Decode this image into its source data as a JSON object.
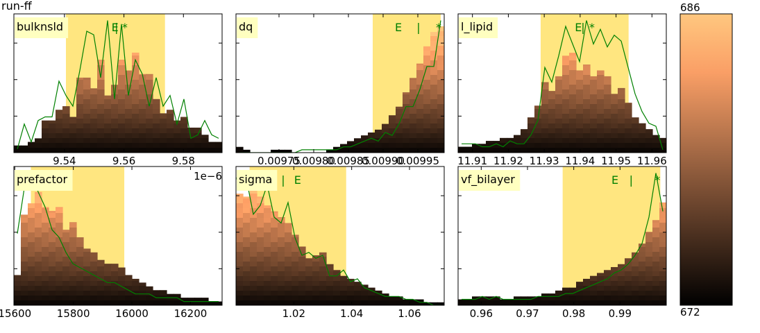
{
  "figure": {
    "title": "run-ff"
  },
  "colorbar": {
    "max_label": "686",
    "min_label": "672",
    "range": [
      672,
      686
    ],
    "colormap": "copper"
  },
  "colors": {
    "band": "#ffe680",
    "line": "#008000",
    "label_bg": "#ffffc0"
  },
  "chart_data": [
    {
      "type": "bar",
      "label": "bulknsld",
      "xlim": [
        9.523,
        9.593
      ],
      "xticks": [
        "9.54",
        "9.56",
        "9.58"
      ],
      "xtick_values": [
        9.54,
        9.56,
        9.58
      ],
      "offset_text": "",
      "band": [
        9.5405,
        9.5738
      ],
      "markers": [
        {
          "text": "E",
          "x": 9.557
        },
        {
          "text": "|",
          "x": 9.5575
        },
        {
          "text": "*",
          "x": 9.5603
        }
      ],
      "hist": [
        2,
        2,
        3,
        4,
        9,
        9,
        12,
        13,
        10,
        21,
        21,
        18,
        26,
        16,
        19,
        26,
        23,
        28,
        22,
        22,
        15,
        11,
        12,
        9,
        10,
        7,
        7,
        5,
        3,
        3
      ],
      "line": [
        1,
        8,
        3,
        9,
        10,
        10,
        20,
        16,
        13,
        23,
        34,
        33,
        21,
        37,
        15,
        36,
        16,
        26,
        22,
        13,
        21,
        13,
        16,
        8,
        15,
        4,
        5,
        9,
        5,
        4
      ]
    },
    {
      "type": "bar",
      "label": "dq",
      "xlim": [
        0.009688,
        0.009988
      ],
      "xticks": [
        "0.00975",
        "0.00980",
        "0.00985",
        "0.00990",
        "0.00995"
      ],
      "xtick_values": [
        0.00975,
        0.0098,
        0.00985,
        0.0099,
        0.00995
      ],
      "offset_text": "",
      "band": [
        0.009885,
        0.009983
      ],
      "markers": [
        {
          "text": "E",
          "x": 0.009922
        },
        {
          "text": "|",
          "x": 0.009951
        },
        {
          "text": "*",
          "x": 0.00998
        }
      ],
      "hist": [
        2,
        1,
        0,
        0,
        0,
        1,
        1,
        1,
        0,
        0,
        0,
        0,
        0,
        1,
        2,
        3,
        4,
        5,
        6,
        7,
        8,
        10,
        13,
        16,
        21,
        26,
        31,
        37,
        42,
        44
      ],
      "line": [
        0,
        0,
        0,
        0,
        0,
        0,
        0,
        0,
        0,
        1,
        1,
        1,
        1,
        1,
        1,
        2,
        2,
        3,
        4,
        5,
        4,
        7,
        6,
        10,
        16,
        16,
        22,
        30,
        30,
        46
      ]
    },
    {
      "type": "bar",
      "label": "l_lipid",
      "xlim": [
        11.906,
        11.964
      ],
      "xticks": [
        "11.91",
        "11.92",
        "11.93",
        "11.94",
        "11.95",
        "11.96"
      ],
      "xtick_values": [
        11.91,
        11.92,
        11.93,
        11.94,
        11.95,
        11.96
      ],
      "offset_text": "",
      "band": [
        11.929,
        11.9535
      ],
      "markers": [
        {
          "text": "E",
          "x": 11.9395
        },
        {
          "text": "|",
          "x": 11.9408
        },
        {
          "text": "*",
          "x": 11.9433
        }
      ],
      "hist": [
        2,
        2,
        3,
        3,
        4,
        4,
        5,
        5,
        6,
        8,
        12,
        16,
        24,
        21,
        26,
        33,
        34,
        28,
        30,
        26,
        28,
        26,
        20,
        22,
        17,
        12,
        10,
        8,
        6,
        5
      ],
      "line": [
        3,
        3,
        3,
        2,
        2,
        3,
        2,
        4,
        3,
        3,
        6,
        11,
        29,
        24,
        33,
        43,
        37,
        31,
        45,
        37,
        42,
        36,
        40,
        38,
        29,
        20,
        14,
        10,
        9,
        1
      ]
    },
    {
      "type": "bar",
      "label": "prefactor",
      "xlim": [
        15597,
        16308
      ],
      "xticks": [
        "15600",
        "15800",
        "16000",
        "16200"
      ],
      "xtick_values": [
        15600,
        15800,
        16000,
        16200
      ],
      "offset_text": "1e−6",
      "band": [
        15655,
        15974
      ],
      "markers": [
        {
          "text": "E",
          "x": 15636
        },
        {
          "text": "|",
          "x": 15636
        },
        {
          "text": "*",
          "x": 15647
        }
      ],
      "hist": [
        8,
        24,
        27,
        30,
        26,
        25,
        26,
        20,
        22,
        18,
        15,
        14,
        12,
        11,
        11,
        10,
        8,
        7,
        6,
        5,
        4,
        4,
        3,
        3,
        2,
        2,
        2,
        2,
        1,
        1
      ],
      "line": [
        19,
        31,
        35,
        30,
        26,
        20,
        18,
        14,
        11,
        10,
        9,
        8,
        7,
        6,
        6,
        5,
        4,
        3,
        3,
        3,
        2,
        2,
        2,
        2,
        1,
        1,
        1,
        1,
        1,
        1
      ]
    },
    {
      "type": "bar",
      "label": "sigma",
      "xlim": [
        1.0,
        1.072
      ],
      "xticks": [
        "1.02",
        "1.04",
        "1.06"
      ],
      "xtick_values": [
        1.02,
        1.04,
        1.06
      ],
      "offset_text": "",
      "band": [
        1.0047,
        1.0381
      ],
      "markers": [
        {
          "text": "*",
          "x": 1.0005
        },
        {
          "text": "|",
          "x": 1.0163
        },
        {
          "text": "E",
          "x": 1.0213
        }
      ],
      "hist": [
        38,
        37,
        43,
        37,
        34,
        32,
        30,
        28,
        24,
        20,
        16,
        17,
        18,
        14,
        12,
        10,
        9,
        8,
        7,
        6,
        5,
        4,
        3,
        3,
        2,
        2,
        2,
        1,
        1,
        1
      ],
      "line": [
        45,
        43,
        31,
        34,
        41,
        30,
        28,
        35,
        23,
        17,
        18,
        16,
        17,
        10,
        10,
        12,
        8,
        9,
        6,
        5,
        4,
        3,
        3,
        3,
        2,
        2,
        1,
        1,
        0,
        0
      ]
    },
    {
      "type": "bar",
      "label": "vf_bilayer",
      "xlim": [
        0.955,
        1.0
      ],
      "xticks": [
        "0.96",
        "0.97",
        "0.98",
        "0.99"
      ],
      "xtick_values": [
        0.96,
        0.97,
        0.98,
        0.99
      ],
      "offset_text": "",
      "band": [
        0.9776,
        0.9987
      ],
      "markers": [
        {
          "text": "E",
          "x": 0.9889
        },
        {
          "text": "|",
          "x": 0.9924
        },
        {
          "text": "*",
          "x": 0.9981
        }
      ],
      "hist": [
        2,
        2,
        3,
        3,
        3,
        3,
        2,
        2,
        3,
        3,
        3,
        3,
        4,
        4,
        5,
        6,
        6,
        8,
        9,
        10,
        11,
        12,
        13,
        14,
        16,
        18,
        21,
        25,
        29,
        35
      ],
      "line": [
        2,
        2,
        2,
        3,
        2,
        3,
        2,
        2,
        2,
        2,
        2,
        3,
        3,
        3,
        3,
        4,
        4,
        5,
        6,
        7,
        8,
        9,
        11,
        12,
        14,
        17,
        21,
        30,
        45,
        32
      ]
    }
  ]
}
